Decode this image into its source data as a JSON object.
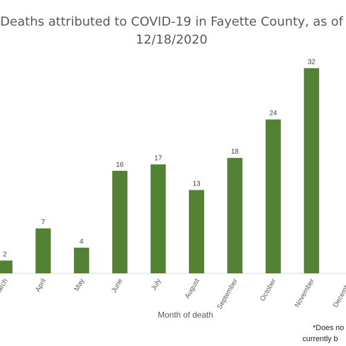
{
  "chart_data": {
    "type": "bar",
    "title_line1": "Deaths attributed to COVID-19 in Fayette County, as of",
    "title_line2": "12/18/2020",
    "xlabel": "Month of death",
    "ylabel": "",
    "categories": [
      "March",
      "April",
      "May",
      "June",
      "July",
      "August",
      "September",
      "October",
      "November",
      "December"
    ],
    "values": [
      2,
      7,
      4,
      16,
      17,
      13,
      18,
      24,
      32,
      null
    ],
    "data_labels": [
      "2",
      "7",
      "4",
      "16",
      "17",
      "13",
      "18",
      "24",
      "32",
      ""
    ],
    "ylim": [
      0,
      34
    ],
    "bar_color": "#548235",
    "grid": false,
    "legend": "none",
    "footnote_line1": "*Does no",
    "footnote_line2": "currently b"
  }
}
